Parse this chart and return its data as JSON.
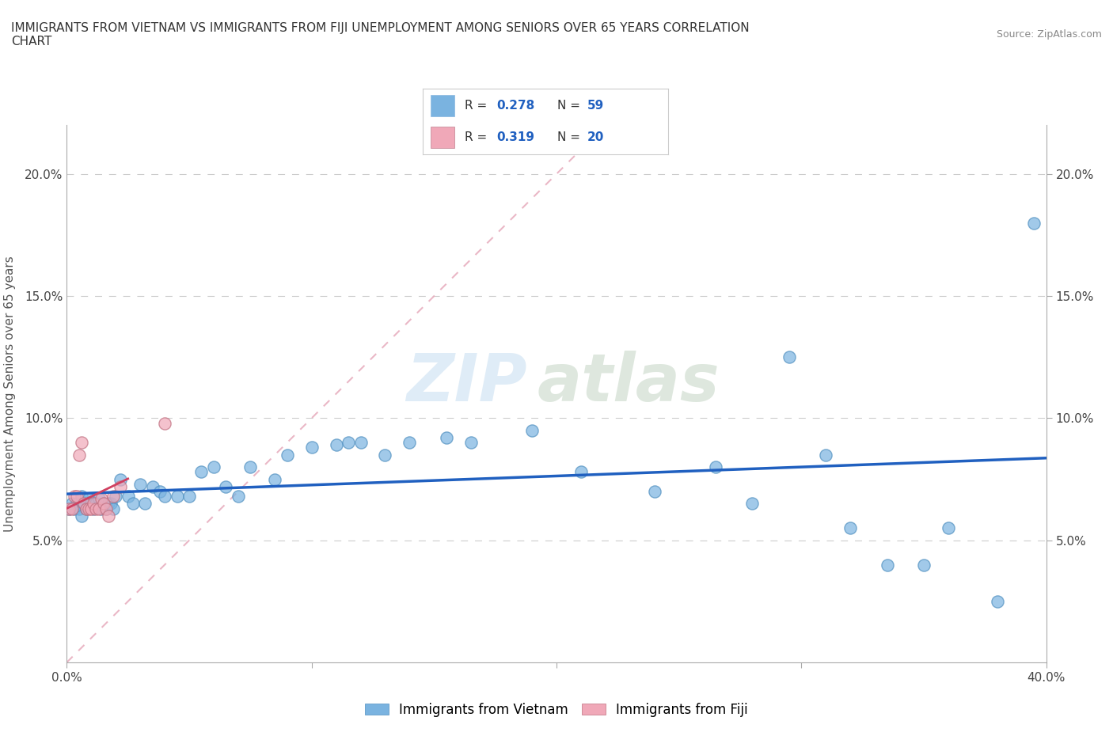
{
  "title": "IMMIGRANTS FROM VIETNAM VS IMMIGRANTS FROM FIJI UNEMPLOYMENT AMONG SENIORS OVER 65 YEARS CORRELATION\nCHART",
  "source": "Source: ZipAtlas.com",
  "ylabel": "Unemployment Among Seniors over 65 years",
  "xlim": [
    0.0,
    0.4
  ],
  "ylim": [
    0.0,
    0.22
  ],
  "xticks": [
    0.0,
    0.1,
    0.2,
    0.3,
    0.4
  ],
  "xtick_labels": [
    "0.0%",
    "",
    "",
    "",
    "40.0%"
  ],
  "yticks": [
    0.05,
    0.1,
    0.15,
    0.2
  ],
  "ytick_labels": [
    "5.0%",
    "10.0%",
    "15.0%",
    "20.0%"
  ],
  "vietnam_scatter_x": [
    0.001,
    0.002,
    0.003,
    0.004,
    0.005,
    0.006,
    0.006,
    0.007,
    0.008,
    0.009,
    0.01,
    0.011,
    0.012,
    0.013,
    0.014,
    0.015,
    0.016,
    0.017,
    0.018,
    0.019,
    0.02,
    0.022,
    0.025,
    0.027,
    0.03,
    0.032,
    0.035,
    0.038,
    0.04,
    0.045,
    0.05,
    0.055,
    0.06,
    0.065,
    0.07,
    0.075,
    0.085,
    0.09,
    0.1,
    0.11,
    0.115,
    0.12,
    0.13,
    0.14,
    0.155,
    0.165,
    0.19,
    0.21,
    0.24,
    0.265,
    0.28,
    0.295,
    0.31,
    0.32,
    0.335,
    0.35,
    0.36,
    0.38,
    0.395
  ],
  "vietnam_scatter_y": [
    0.063,
    0.065,
    0.063,
    0.065,
    0.063,
    0.06,
    0.068,
    0.065,
    0.063,
    0.067,
    0.065,
    0.063,
    0.065,
    0.067,
    0.063,
    0.065,
    0.063,
    0.065,
    0.065,
    0.063,
    0.068,
    0.075,
    0.068,
    0.065,
    0.073,
    0.065,
    0.072,
    0.07,
    0.068,
    0.068,
    0.068,
    0.078,
    0.08,
    0.072,
    0.068,
    0.08,
    0.075,
    0.085,
    0.088,
    0.089,
    0.09,
    0.09,
    0.085,
    0.09,
    0.092,
    0.09,
    0.095,
    0.078,
    0.07,
    0.08,
    0.065,
    0.125,
    0.085,
    0.055,
    0.04,
    0.04,
    0.055,
    0.025,
    0.18
  ],
  "fiji_scatter_x": [
    0.001,
    0.002,
    0.003,
    0.004,
    0.005,
    0.006,
    0.007,
    0.008,
    0.009,
    0.01,
    0.011,
    0.012,
    0.013,
    0.014,
    0.015,
    0.016,
    0.017,
    0.019,
    0.022,
    0.04
  ],
  "fiji_scatter_y": [
    0.063,
    0.063,
    0.068,
    0.068,
    0.085,
    0.09,
    0.065,
    0.063,
    0.063,
    0.063,
    0.065,
    0.063,
    0.063,
    0.067,
    0.065,
    0.063,
    0.06,
    0.068,
    0.072,
    0.098
  ],
  "vietnam_color": "#7ab3e0",
  "fiji_color": "#f0a8b8",
  "vietnam_trend_color": "#2060c0",
  "fiji_trend_color": "#d04060",
  "diagonal_color": "#e8b0c0",
  "watermark_zip": "ZIP",
  "watermark_atlas": "atlas",
  "background_color": "#ffffff"
}
